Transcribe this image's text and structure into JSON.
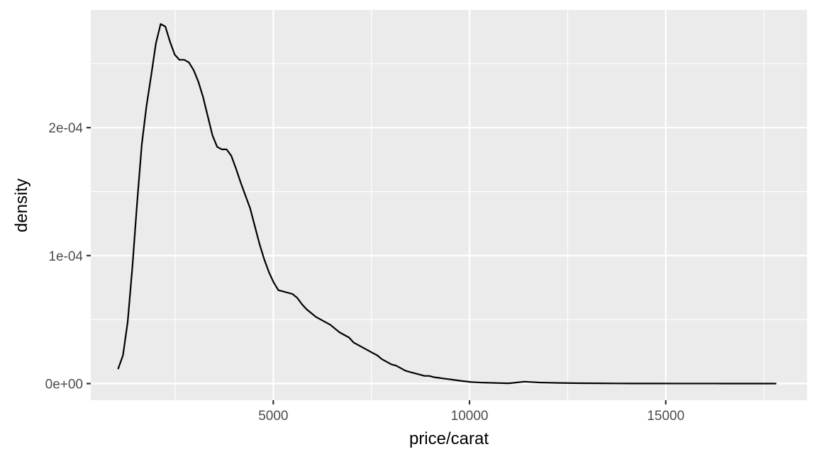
{
  "chart_data": {
    "type": "area",
    "geom": "density",
    "xlabel": "price/carat",
    "ylabel": "density",
    "xlim": [
      350,
      18600
    ],
    "ylim": [
      -1.3e-05,
      0.000292
    ],
    "x_ticks": [
      5000,
      10000,
      15000
    ],
    "x_minor_ticks": [
      2500,
      7500,
      12500,
      17500
    ],
    "y_ticks": [
      0,
      0.0001,
      0.0002
    ],
    "y_minor_ticks": [
      5e-05,
      0.00015,
      0.00025
    ],
    "x_tick_labels": [
      "5000",
      "10000",
      "15000"
    ],
    "y_tick_labels": [
      "0e+00",
      "1e-04",
      "2e-04"
    ],
    "grid": true,
    "legend": "none",
    "colors": {
      "panel": "#ebebeb",
      "grid": "#ffffff",
      "line": "#000000",
      "tick_text": "#4d4d4d",
      "title_text": "#000000"
    },
    "series": [
      {
        "values": [
          [
            1050,
            1.18e-05
          ],
          [
            1170,
            2.2e-05
          ],
          [
            1290,
            4.8e-05
          ],
          [
            1410,
            9.1e-05
          ],
          [
            1530,
            0.000141
          ],
          [
            1650,
            0.000187
          ],
          [
            1770,
            0.000217
          ],
          [
            1890,
            0.000241
          ],
          [
            2010,
            0.000266
          ],
          [
            2130,
            0.000281
          ],
          [
            2250,
            0.000279
          ],
          [
            2370,
            0.000267
          ],
          [
            2490,
            0.000257
          ],
          [
            2610,
            0.000253
          ],
          [
            2730,
            0.000253
          ],
          [
            2850,
            0.000251
          ],
          [
            2970,
            0.000245
          ],
          [
            3090,
            0.000236
          ],
          [
            3210,
            0.000224
          ],
          [
            3330,
            0.000209
          ],
          [
            3450,
            0.000194
          ],
          [
            3570,
            0.000185
          ],
          [
            3690,
            0.000183
          ],
          [
            3810,
            0.000183
          ],
          [
            3930,
            0.000178
          ],
          [
            4050,
            0.000168
          ],
          [
            4170,
            0.000157
          ],
          [
            4290,
            0.000147
          ],
          [
            4410,
            0.000137
          ],
          [
            4530,
            0.000123
          ],
          [
            4650,
            0.000109
          ],
          [
            4770,
            9.7e-05
          ],
          [
            4890,
            8.7e-05
          ],
          [
            5010,
            7.9e-05
          ],
          [
            5130,
            7.3e-05
          ],
          [
            5250,
            7.2e-05
          ],
          [
            5370,
            7.1e-05
          ],
          [
            5490,
            7e-05
          ],
          [
            5610,
            6.7e-05
          ],
          [
            5730,
            6.2e-05
          ],
          [
            5850,
            5.8e-05
          ],
          [
            5970,
            5.5e-05
          ],
          [
            6090,
            5.2e-05
          ],
          [
            6210,
            5e-05
          ],
          [
            6330,
            4.8e-05
          ],
          [
            6450,
            4.6e-05
          ],
          [
            6570,
            4.3e-05
          ],
          [
            6690,
            4e-05
          ],
          [
            6810,
            3.8e-05
          ],
          [
            6930,
            3.6e-05
          ],
          [
            7050,
            3.2e-05
          ],
          [
            7170,
            3e-05
          ],
          [
            7290,
            2.8e-05
          ],
          [
            7410,
            2.6e-05
          ],
          [
            7530,
            2.4e-05
          ],
          [
            7650,
            2.2e-05
          ],
          [
            7770,
            1.9e-05
          ],
          [
            7890,
            1.7e-05
          ],
          [
            8010,
            1.5e-05
          ],
          [
            8130,
            1.4e-05
          ],
          [
            8250,
            1.2e-05
          ],
          [
            8370,
            1e-05
          ],
          [
            8490,
            9e-06
          ],
          [
            8610,
            8e-06
          ],
          [
            8730,
            7e-06
          ],
          [
            8850,
            6e-06
          ],
          [
            8970,
            6e-06
          ],
          [
            9090,
            5e-06
          ],
          [
            9210,
            4.5e-06
          ],
          [
            9330,
            4e-06
          ],
          [
            9450,
            3.5e-06
          ],
          [
            9570,
            3e-06
          ],
          [
            9690,
            2.5e-06
          ],
          [
            9810,
            2e-06
          ],
          [
            9930,
            1.6e-06
          ],
          [
            10050,
            1.2e-06
          ],
          [
            10170,
            1e-06
          ],
          [
            10290,
            8e-07
          ],
          [
            10410,
            7e-07
          ],
          [
            10530,
            6e-07
          ],
          [
            10650,
            5e-07
          ],
          [
            10770,
            4e-07
          ],
          [
            10890,
            3e-07
          ],
          [
            11010,
            2e-07
          ],
          [
            11400,
            1.5e-06
          ],
          [
            11800,
            8e-07
          ],
          [
            12300,
            5e-07
          ],
          [
            12800,
            3e-07
          ],
          [
            13300,
            2e-07
          ],
          [
            13800,
            1e-07
          ],
          [
            14300,
            8e-08
          ],
          [
            14800,
            6e-08
          ],
          [
            15300,
            5e-08
          ],
          [
            15800,
            4e-08
          ],
          [
            16300,
            3e-08
          ],
          [
            16800,
            2e-08
          ],
          [
            17300,
            1e-08
          ],
          [
            17800,
            1e-08
          ]
        ]
      }
    ]
  }
}
